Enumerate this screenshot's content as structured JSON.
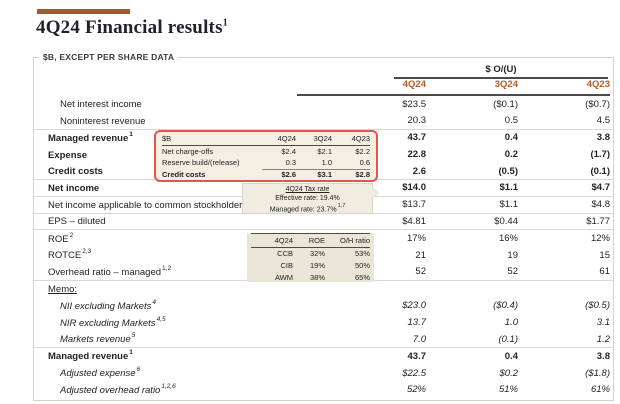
{
  "title": {
    "text": "4Q24 Financial results",
    "sup": "1"
  },
  "legend": "$B, EXCEPT PER SHARE DATA",
  "header": {
    "group": "$ O/(U)",
    "cols": [
      "4Q24",
      "3Q24",
      "4Q23"
    ]
  },
  "rows": [
    {
      "label": "Net interest income",
      "v": [
        "$23.5",
        "($0.1)",
        "($0.7)"
      ]
    },
    {
      "label": "Noninterest revenue",
      "v": [
        "20.3",
        "0.5",
        "4.5"
      ]
    },
    {
      "label": "Managed revenue",
      "sup": "1",
      "v": [
        "43.7",
        "0.4",
        "3.8"
      ]
    },
    {
      "label": "Expense",
      "v": [
        "22.8",
        "0.2",
        "(1.7)"
      ]
    },
    {
      "label": "Credit costs",
      "v": [
        "2.6",
        "(0.5)",
        "(0.1)"
      ]
    },
    {
      "label": "Net income",
      "v": [
        "$14.0",
        "$1.1",
        "$4.7"
      ]
    },
    {
      "label": "Net income applicable to common stockholders",
      "v": [
        "$13.7",
        "$1.1",
        "$4.8"
      ]
    },
    {
      "label": "EPS – diluted",
      "v": [
        "$4.81",
        "$0.44",
        "$1.77"
      ]
    },
    {
      "label": "ROE",
      "sup": "2",
      "v": [
        "17%",
        "16%",
        "12%"
      ]
    },
    {
      "label": "ROTCE",
      "sup": "2,3",
      "v": [
        "21",
        "19",
        "15"
      ]
    },
    {
      "label": "Overhead ratio – managed",
      "sup": "1,2",
      "v": [
        "52",
        "52",
        "61"
      ]
    },
    {
      "label": "Memo:",
      "v": [
        "",
        "",
        ""
      ]
    },
    {
      "label": "NII excluding Markets",
      "sup": "4",
      "v": [
        "$23.0",
        "($0.4)",
        "($0.5)"
      ]
    },
    {
      "label": "NIR excluding Markets",
      "sup": "4,5",
      "v": [
        "13.7",
        "1.0",
        "3.1"
      ]
    },
    {
      "label": "Markets revenue",
      "sup": "5",
      "v": [
        "7.0",
        "(0.1)",
        "1.2"
      ]
    },
    {
      "label": "Managed revenue",
      "sup": "1",
      "v": [
        "43.7",
        "0.4",
        "3.8"
      ]
    },
    {
      "label": "Adjusted expense",
      "sup": "6",
      "v": [
        "$22.5",
        "$0.2",
        "($1.8)"
      ]
    },
    {
      "label": "Adjusted overhead ratio",
      "sup": "1,2,6",
      "v": [
        "52%",
        "51%",
        "61%"
      ]
    }
  ],
  "credit_box": {
    "header": [
      "$B",
      "4Q24",
      "3Q24",
      "4Q23"
    ],
    "rows": [
      [
        "Net charge-offs",
        "$2.4",
        "$2.1",
        "$2.2"
      ],
      [
        "Reserve build/(release)",
        "0.3",
        "1.0",
        "0.6"
      ],
      [
        "Credit costs",
        "$2.6",
        "$3.1",
        "$2.8"
      ]
    ]
  },
  "tax_box": {
    "title": "4Q24 Tax rate",
    "line1": "Effective rate: 19.4%",
    "line2": "Managed rate: 23.7%",
    "line2_sup": "1,7"
  },
  "segment_box": {
    "header": [
      "4Q24",
      "ROE",
      "O/H ratio"
    ],
    "rows": [
      [
        "CCB",
        "32%",
        "53%"
      ],
      [
        "CIB",
        "19%",
        "50%"
      ],
      [
        "AWM",
        "38%",
        "65%"
      ]
    ]
  },
  "colors": {
    "accent_bar": "#995c35",
    "column_header": "#b45c2c",
    "callout_border_red": "#e0564b",
    "callout_beige": "#f4efe3",
    "segment_beige": "#eae5d7",
    "rule_dark": "#4a4a4a",
    "rule_light": "#ddd8cc"
  }
}
